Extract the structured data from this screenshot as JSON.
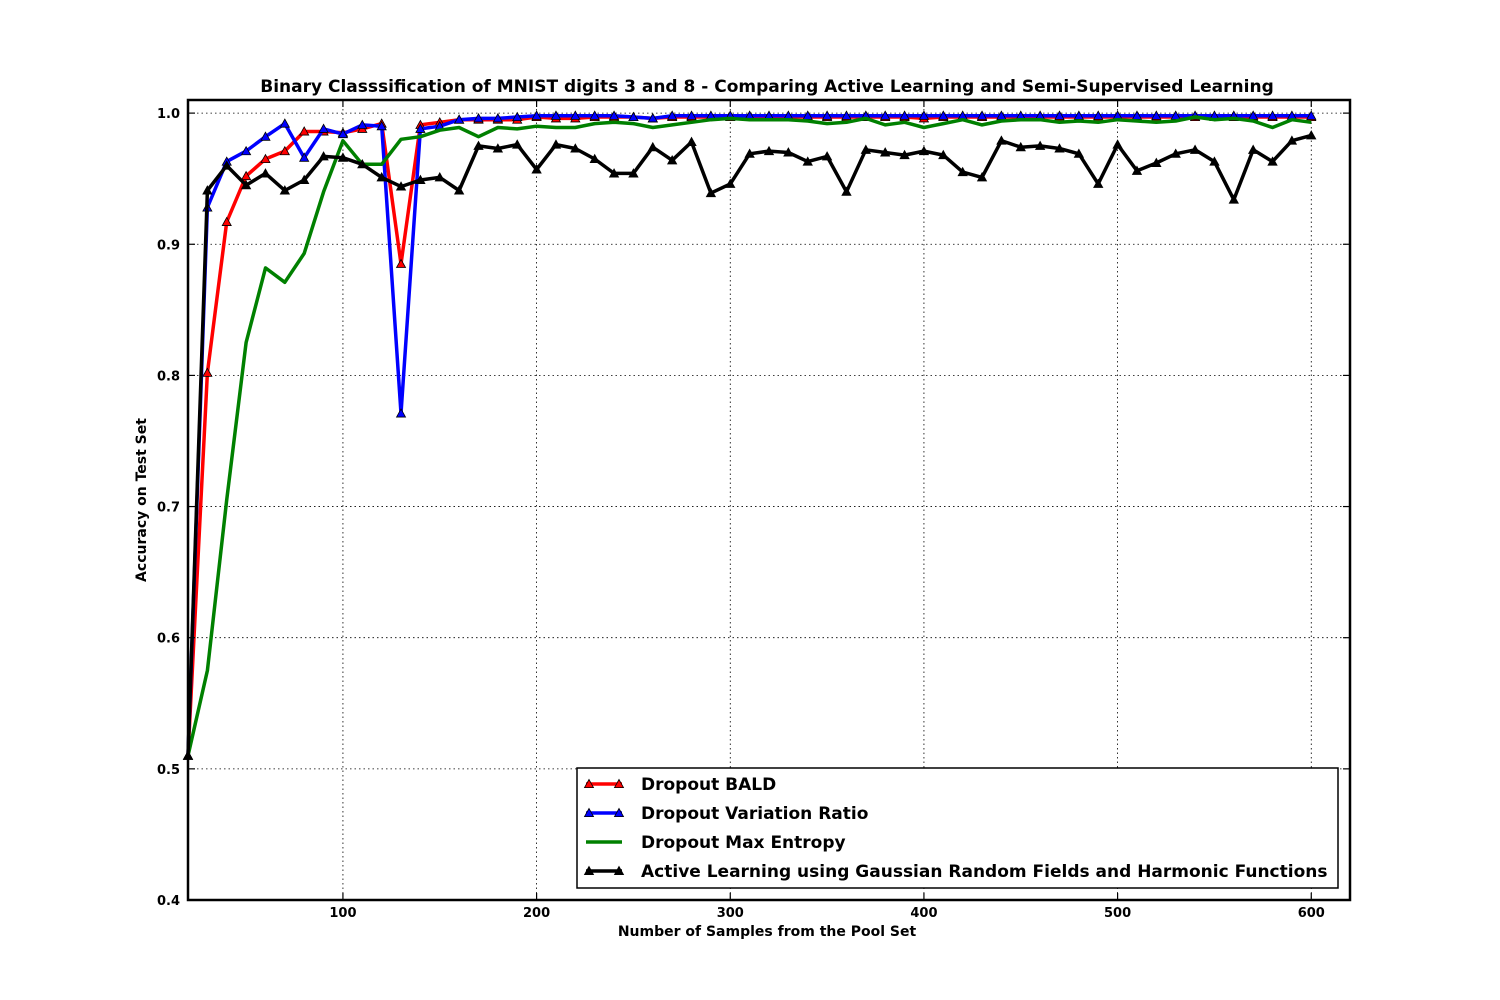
{
  "chart_data": {
    "type": "line",
    "title": "Binary Classsification of MNIST digits 3 and 8 - Comparing Active Learning and Semi-Supervised Learning",
    "xlabel": "Number of Samples from the Pool Set",
    "ylabel": "Accuracy on Test Set",
    "xlim": [
      20,
      620
    ],
    "ylim": [
      0.4,
      1.01
    ],
    "xticks": [
      100,
      200,
      300,
      400,
      500,
      600
    ],
    "yticks": [
      0.4,
      0.5,
      0.6,
      0.7,
      0.8,
      0.9,
      1.0
    ],
    "xtick_labels": [
      "100",
      "200",
      "300",
      "400",
      "500",
      "600"
    ],
    "ytick_labels": [
      "0.4",
      "0.5",
      "0.6",
      "0.7",
      "0.8",
      "0.9",
      "1.0"
    ],
    "grid": true,
    "legend_position": "bottom-right",
    "x": [
      20,
      30,
      40,
      50,
      60,
      70,
      80,
      90,
      100,
      110,
      120,
      130,
      140,
      150,
      160,
      170,
      180,
      190,
      200,
      210,
      220,
      230,
      240,
      250,
      260,
      270,
      280,
      290,
      300,
      310,
      320,
      330,
      340,
      350,
      360,
      370,
      380,
      390,
      400,
      410,
      420,
      430,
      440,
      450,
      460,
      470,
      480,
      490,
      500,
      510,
      520,
      530,
      540,
      550,
      560,
      570,
      580,
      590,
      600
    ],
    "series": [
      {
        "name": "Dropout BALD",
        "color": "#ff0000",
        "marker": "triangle",
        "values": [
          0.51,
          0.802,
          0.917,
          0.952,
          0.965,
          0.971,
          0.986,
          0.986,
          0.985,
          0.988,
          0.992,
          0.885,
          0.991,
          0.993,
          0.995,
          0.995,
          0.995,
          0.995,
          0.997,
          0.996,
          0.996,
          0.997,
          0.997,
          0.997,
          0.996,
          0.997,
          0.997,
          0.997,
          0.997,
          0.997,
          0.997,
          0.997,
          0.997,
          0.997,
          0.997,
          0.997,
          0.997,
          0.997,
          0.996,
          0.997,
          0.997,
          0.997,
          0.997,
          0.997,
          0.997,
          0.997,
          0.997,
          0.997,
          0.997,
          0.997,
          0.997,
          0.997,
          0.997,
          0.997,
          0.997,
          0.997,
          0.997,
          0.997,
          0.997
        ]
      },
      {
        "name": "Dropout Variation Ratio",
        "color": "#0000ff",
        "marker": "triangle",
        "values": [
          0.51,
          0.928,
          0.963,
          0.971,
          0.982,
          0.992,
          0.966,
          0.988,
          0.984,
          0.991,
          0.99,
          0.771,
          0.988,
          0.99,
          0.995,
          0.996,
          0.996,
          0.997,
          0.998,
          0.998,
          0.998,
          0.998,
          0.998,
          0.997,
          0.996,
          0.998,
          0.998,
          0.998,
          0.998,
          0.998,
          0.998,
          0.998,
          0.998,
          0.998,
          0.998,
          0.998,
          0.998,
          0.998,
          0.998,
          0.998,
          0.998,
          0.998,
          0.998,
          0.998,
          0.998,
          0.998,
          0.998,
          0.998,
          0.998,
          0.998,
          0.998,
          0.998,
          0.998,
          0.998,
          0.998,
          0.998,
          0.998,
          0.998,
          0.998
        ]
      },
      {
        "name": "Dropout Max Entropy",
        "color": "#008000",
        "marker": "none",
        "values": [
          0.51,
          0.575,
          0.705,
          0.825,
          0.882,
          0.871,
          0.893,
          0.94,
          0.979,
          0.961,
          0.961,
          0.98,
          0.982,
          0.987,
          0.989,
          0.982,
          0.989,
          0.988,
          0.99,
          0.989,
          0.989,
          0.992,
          0.993,
          0.992,
          0.989,
          0.991,
          0.993,
          0.995,
          0.996,
          0.995,
          0.995,
          0.995,
          0.994,
          0.992,
          0.993,
          0.996,
          0.991,
          0.993,
          0.989,
          0.992,
          0.995,
          0.991,
          0.994,
          0.995,
          0.995,
          0.993,
          0.994,
          0.993,
          0.995,
          0.994,
          0.993,
          0.994,
          0.997,
          0.995,
          0.996,
          0.994,
          0.989,
          0.995,
          0.993
        ]
      },
      {
        "name": "Active Learning using Gaussian Random Fields and Harmonic Functions",
        "color": "#000000",
        "marker": "triangle",
        "values": [
          0.51,
          0.941,
          0.96,
          0.945,
          0.954,
          0.941,
          0.949,
          0.967,
          0.966,
          0.961,
          0.951,
          0.944,
          0.949,
          0.951,
          0.941,
          0.975,
          0.973,
          0.976,
          0.957,
          0.976,
          0.973,
          0.965,
          0.954,
          0.954,
          0.974,
          0.964,
          0.978,
          0.939,
          0.946,
          0.969,
          0.971,
          0.97,
          0.963,
          0.967,
          0.94,
          0.972,
          0.97,
          0.968,
          0.971,
          0.968,
          0.955,
          0.951,
          0.979,
          0.974,
          0.975,
          0.973,
          0.969,
          0.946,
          0.976,
          0.956,
          0.962,
          0.969,
          0.972,
          0.963,
          0.934,
          0.972,
          0.963,
          0.979,
          0.983
        ]
      }
    ]
  }
}
